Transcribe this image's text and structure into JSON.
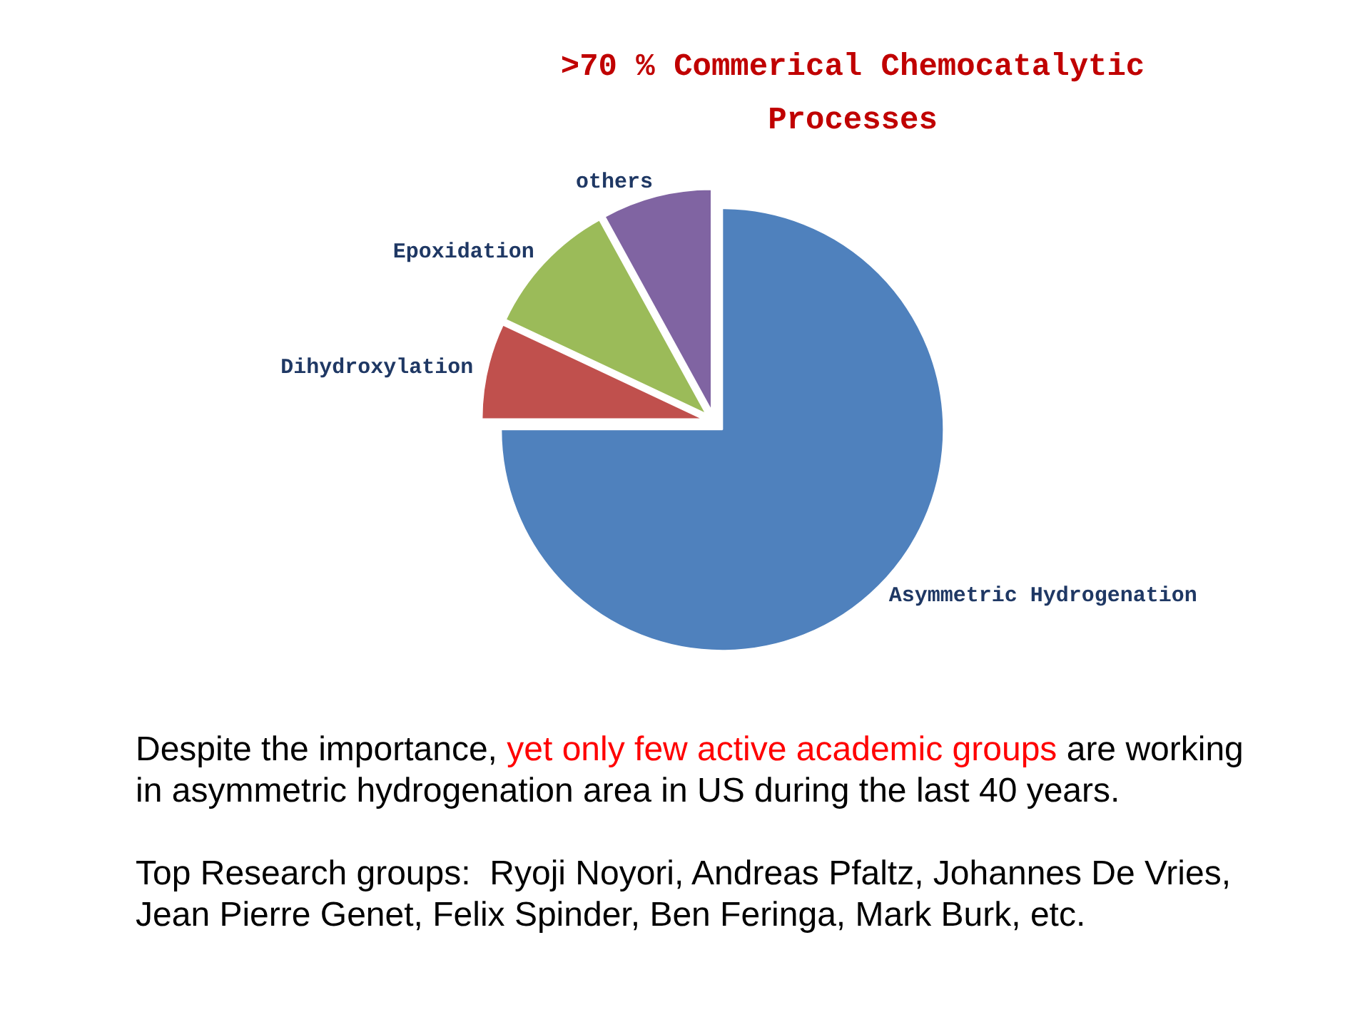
{
  "chart_data": {
    "type": "pie",
    "title": ">70 % Commerical Chemocatalytic Processes",
    "categories": [
      "Asymmetric Hydrogenation",
      "Dihydroxylation",
      "Epoxidation",
      "others"
    ],
    "values": [
      75,
      7,
      10,
      8
    ],
    "colors": [
      "#4f81bd",
      "#c0504d",
      "#9bbb59",
      "#8064a2"
    ],
    "annotations": [
      "Despite the importance,",
      "yet only few active academic groups",
      "are working",
      "in asymmetric hydrogenation area in US during the last 40 years.",
      "Top Research groups:  Ryoji Noyori, Andreas Pfaltz, Johannes De Vries,",
      "Jean Pierre Genet, Felix Spinder, Ben Feringa, Mark Burk, etc."
    ]
  }
}
